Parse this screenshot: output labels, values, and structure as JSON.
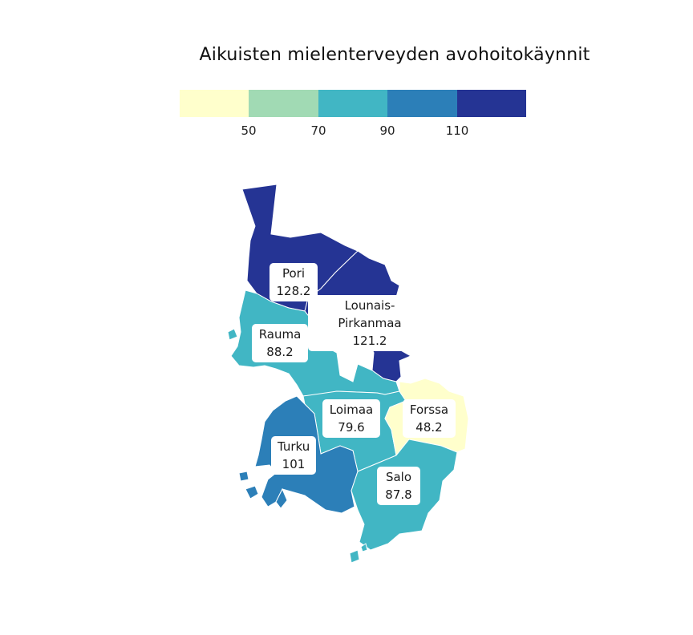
{
  "title": "Aikuisten mielenterveyden avohoitokäynnit",
  "legend": {
    "colors": [
      "#ffffcc",
      "#a1dab4",
      "#41b6c4",
      "#2c7fb8",
      "#253494"
    ],
    "ticks": [
      "50",
      "70",
      "90",
      "110"
    ]
  },
  "regions": {
    "pori": {
      "name": "Pori",
      "value": "128.2"
    },
    "lounais_pirkanmaa": {
      "name": "Lounais-Pirkanmaa",
      "value": "121.2"
    },
    "rauma": {
      "name": "Rauma",
      "value": "88.2"
    },
    "loimaa": {
      "name": "Loimaa",
      "value": "79.6"
    },
    "forssa": {
      "name": "Forssa",
      "value": "48.2"
    },
    "turku": {
      "name": "Turku",
      "value": "101"
    },
    "salo": {
      "name": "Salo",
      "value": "87.8"
    }
  }
}
